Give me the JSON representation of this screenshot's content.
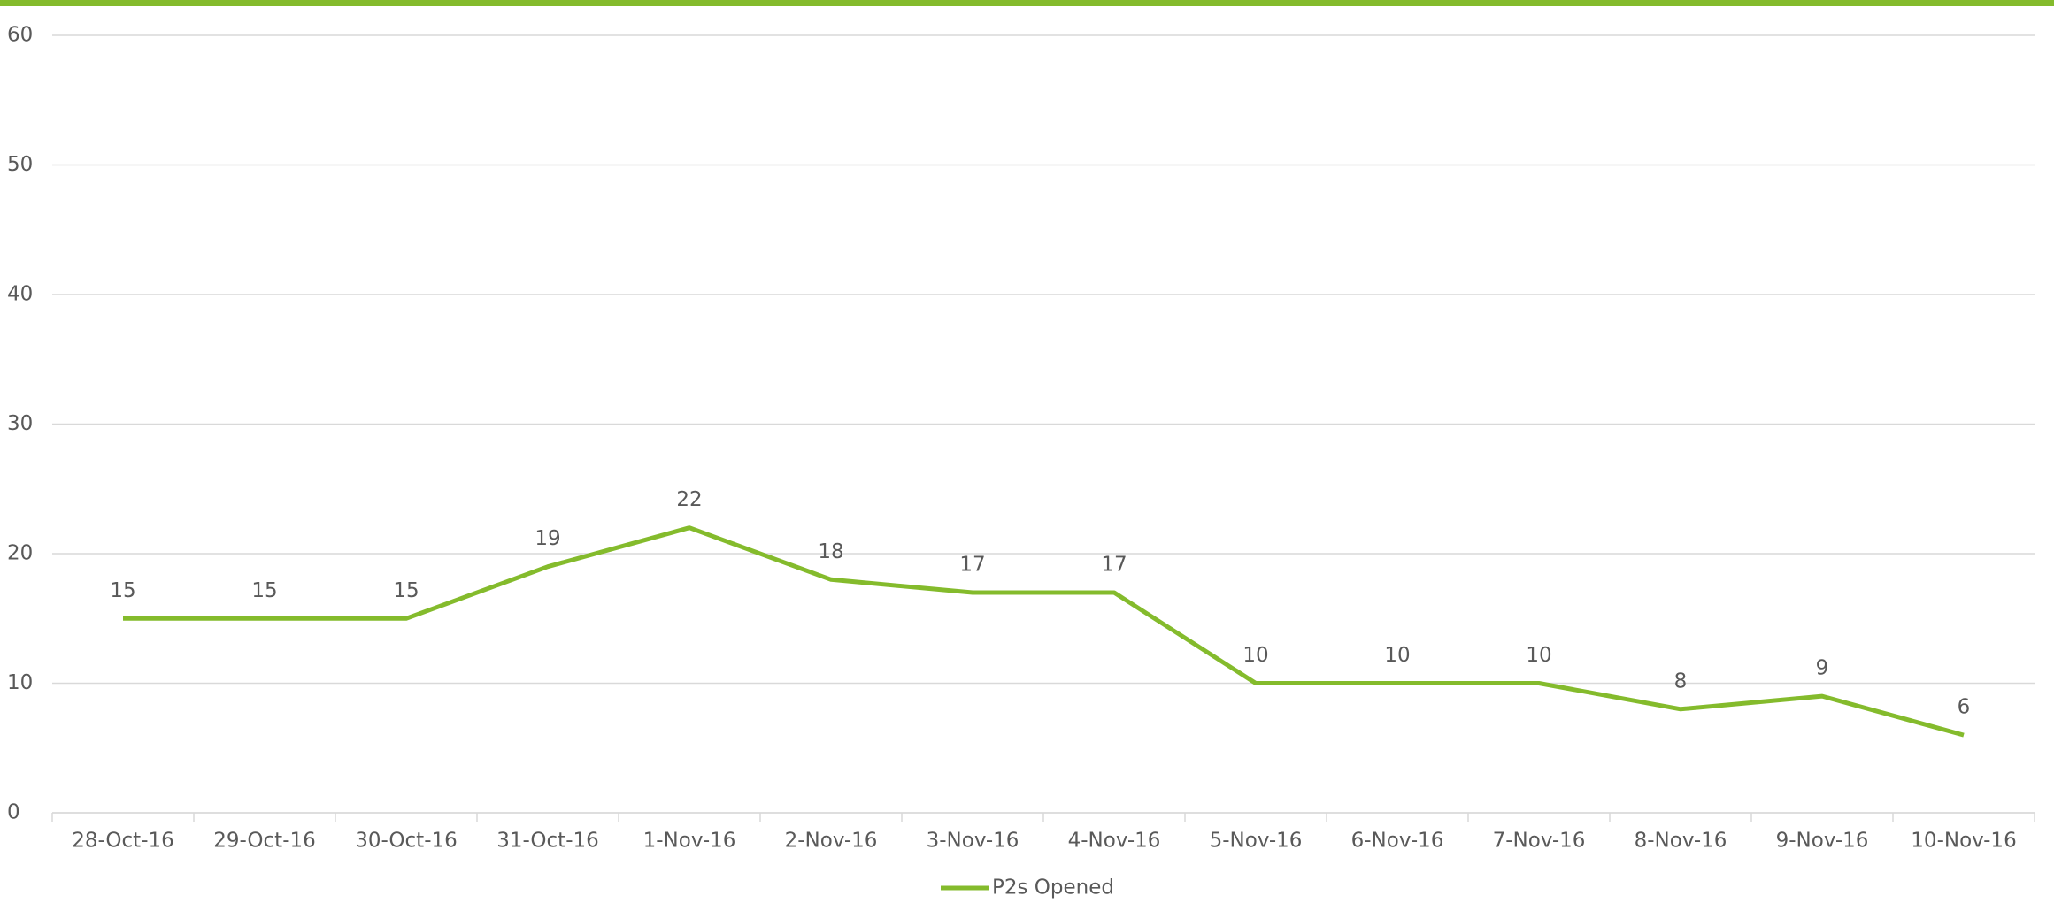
{
  "chart_data": {
    "type": "line",
    "categories": [
      "28-Oct-16",
      "29-Oct-16",
      "30-Oct-16",
      "31-Oct-16",
      "1-Nov-16",
      "2-Nov-16",
      "3-Nov-16",
      "4-Nov-16",
      "5-Nov-16",
      "6-Nov-16",
      "7-Nov-16",
      "8-Nov-16",
      "9-Nov-16",
      "10-Nov-16"
    ],
    "series": [
      {
        "name": "P2s Opened",
        "color": "#84bb2c",
        "values": [
          15,
          15,
          15,
          19,
          22,
          18,
          17,
          17,
          10,
          10,
          10,
          8,
          9,
          6
        ]
      }
    ],
    "ylim": [
      0,
      60
    ],
    "yticks": [
      0,
      10,
      20,
      30,
      40,
      50,
      60
    ],
    "grid": true,
    "legend": "bottom"
  }
}
